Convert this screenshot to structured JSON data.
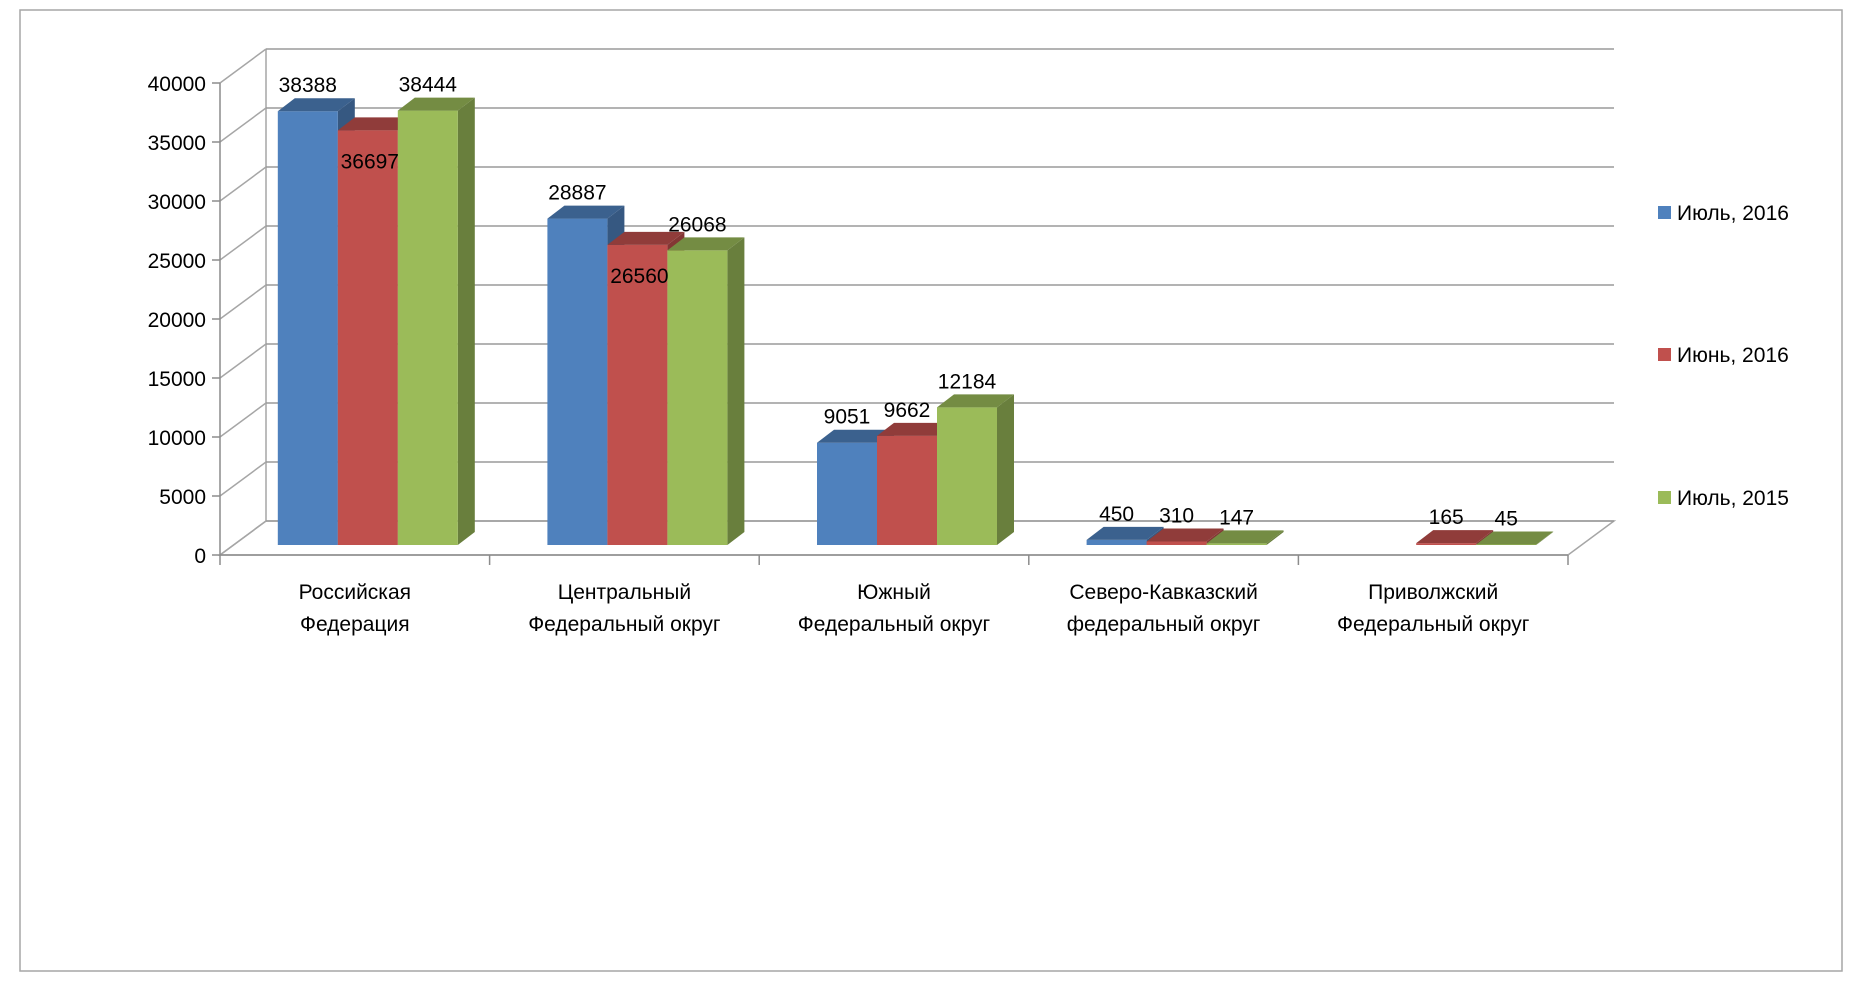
{
  "chart_data": {
    "type": "bar",
    "title": "",
    "xlabel": "",
    "ylabel": "",
    "ylim": [
      0,
      40000
    ],
    "yticks": [
      0,
      5000,
      10000,
      15000,
      20000,
      25000,
      30000,
      35000,
      40000
    ],
    "grid": true,
    "legend_position": "right",
    "categories": [
      [
        "Российская",
        "Федерация"
      ],
      [
        "Центральный",
        "Федеральный округ"
      ],
      [
        "Южный",
        "Федеральный округ"
      ],
      [
        "Северо-Кавказский",
        "федеральный округ"
      ],
      [
        "Приволжский",
        "Федеральный округ"
      ]
    ],
    "series": [
      {
        "name": "Июль, 2016",
        "color": "#4F81BD",
        "values": [
          38388,
          28887,
          9051,
          450,
          null
        ],
        "labels": [
          "38388",
          "28887",
          "9051",
          "450",
          ""
        ]
      },
      {
        "name": "Июнь, 2016",
        "color": "#C0504D",
        "values": [
          36697,
          26560,
          9662,
          310,
          165
        ],
        "labels": [
          "36697",
          "26560",
          "9662",
          "310",
          "165"
        ]
      },
      {
        "name": "Июль, 2015",
        "color": "#9BBB59",
        "values": [
          38444,
          26068,
          12184,
          147,
          45
        ],
        "labels": [
          "38444",
          "26068",
          "12184",
          "147",
          "45"
        ]
      }
    ]
  }
}
